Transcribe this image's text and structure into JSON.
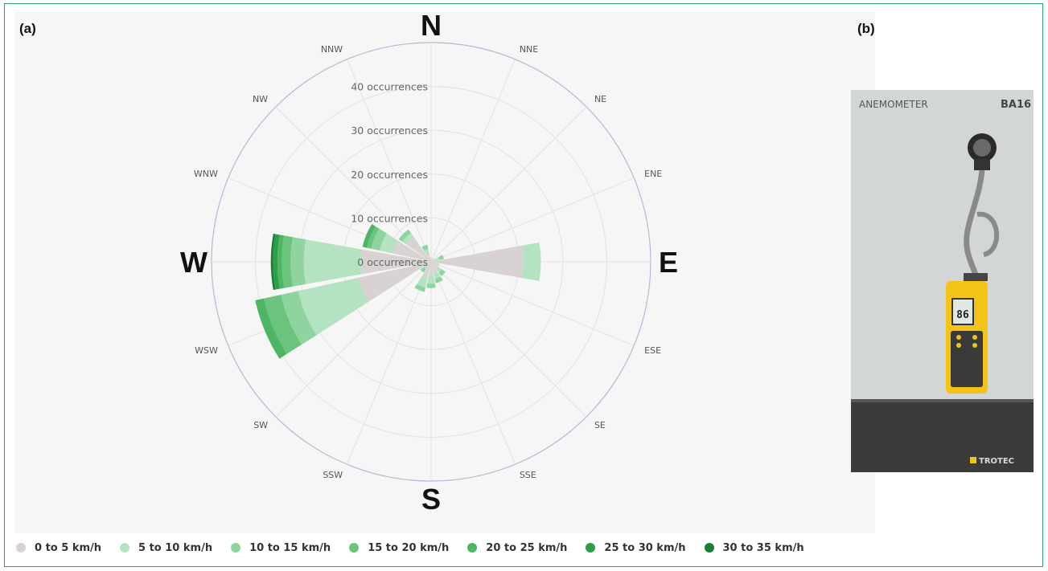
{
  "panels": {
    "a_label": "(a)",
    "b_label": "(b)"
  },
  "chart_data": {
    "type": "wind-rose",
    "directions": [
      "N",
      "NNE",
      "NE",
      "ENE",
      "E",
      "ESE",
      "SE",
      "SSE",
      "S",
      "SSW",
      "SW",
      "WSW",
      "W",
      "WNW",
      "NW",
      "NNW"
    ],
    "cardinal": [
      "N",
      "E",
      "S",
      "W"
    ],
    "radial_axis": {
      "range": [
        0,
        50
      ],
      "ticks": [
        0,
        10,
        20,
        30,
        40
      ],
      "tick_labels": [
        "0 occurrences",
        "10 occurrences",
        "20 occurrences",
        "30 occurrences",
        "40 occurrences"
      ]
    },
    "series": [
      {
        "name": "0 to 5 km/h",
        "color": "#d8d2d2",
        "values": [
          1,
          0,
          1,
          1,
          21,
          2,
          2,
          3,
          3,
          4,
          1,
          17,
          16,
          9,
          7,
          2
        ]
      },
      {
        "name": "5 to 10 km/h",
        "color": "#b3e3c0",
        "values": [
          0,
          0,
          0,
          1,
          4,
          0,
          1,
          1,
          2,
          2,
          1,
          14,
          13,
          3,
          1,
          1
        ]
      },
      {
        "name": "10 to 15 km/h",
        "color": "#8fd49f",
        "values": [
          0,
          0,
          0,
          1,
          0,
          0,
          1,
          1,
          1,
          1,
          1,
          4,
          3,
          2,
          1,
          1
        ]
      },
      {
        "name": "15 to 20 km/h",
        "color": "#6ac47d",
        "values": [
          0,
          0,
          0,
          0,
          0,
          0,
          0,
          0,
          0,
          0,
          0,
          4,
          2,
          1,
          0,
          0
        ]
      },
      {
        "name": "20 to 25 km/h",
        "color": "#4eb562",
        "values": [
          0,
          0,
          0,
          0,
          0,
          0,
          0,
          0,
          0,
          0,
          0,
          2,
          1,
          1,
          0,
          0
        ]
      },
      {
        "name": "25 to 30 km/h",
        "color": "#2f9e49",
        "values": [
          0,
          0,
          0,
          0,
          0,
          0,
          0,
          0,
          0,
          0,
          0,
          0,
          1,
          0,
          0,
          0
        ]
      },
      {
        "name": "30 to 35 km/h",
        "color": "#1a7f35",
        "values": [
          0,
          0,
          0,
          0,
          0,
          0,
          0,
          0,
          0,
          0,
          0,
          0,
          0.5,
          0,
          0,
          0
        ]
      }
    ],
    "legend_position": "bottom",
    "grid": true
  },
  "photo": {
    "board_title": "ANEMOMETER",
    "board_model": "BA16",
    "brand": "TROTEC",
    "display_reading": "86"
  }
}
